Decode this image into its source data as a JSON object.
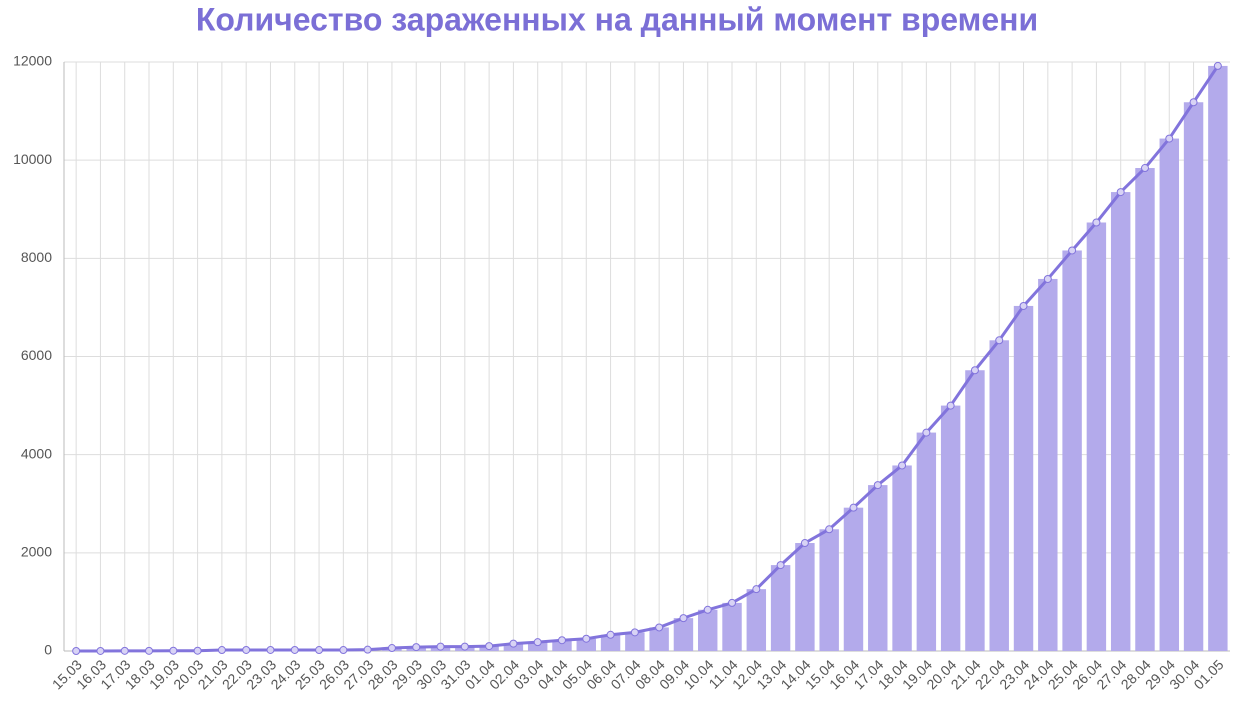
{
  "chart_data": {
    "type": "bar",
    "title": "Количество зараженных на данный момент времени",
    "categories": [
      "15.03",
      "16.03",
      "17.03",
      "18.03",
      "19.03",
      "20.03",
      "21.03",
      "22.03",
      "23.03",
      "24.03",
      "25.03",
      "26.03",
      "27.03",
      "28.03",
      "29.03",
      "30.03",
      "31.03",
      "01.04",
      "02.04",
      "03.04",
      "04.04",
      "05.04",
      "06.04",
      "07.04",
      "08.04",
      "09.04",
      "10.04",
      "11.04",
      "12.04",
      "13.04",
      "14.04",
      "15.04",
      "16.04",
      "17.04",
      "18.04",
      "19.04",
      "20.04",
      "21.04",
      "22.04",
      "23.04",
      "24.04",
      "25.04",
      "26.04",
      "27.04",
      "28.04",
      "29.04",
      "30.04",
      "01.05"
    ],
    "values": [
      0,
      1,
      3,
      3,
      6,
      6,
      20,
      21,
      21,
      21,
      20,
      20,
      27,
      60,
      80,
      90,
      90,
      100,
      150,
      180,
      220,
      250,
      330,
      380,
      480,
      670,
      840,
      980,
      1260,
      1750,
      2200,
      2480,
      2920,
      3380,
      3780,
      4450,
      5000,
      5720,
      6330,
      7030,
      7580,
      8160,
      8730,
      9350,
      9840,
      10440,
      11180,
      11920
    ],
    "color": "#b3aaeb",
    "line": true,
    "line_color": "#8274dc",
    "ylim": [
      0,
      12000
    ],
    "yticks": [
      0,
      2000,
      4000,
      6000,
      8000,
      10000,
      12000
    ],
    "grid": true
  }
}
